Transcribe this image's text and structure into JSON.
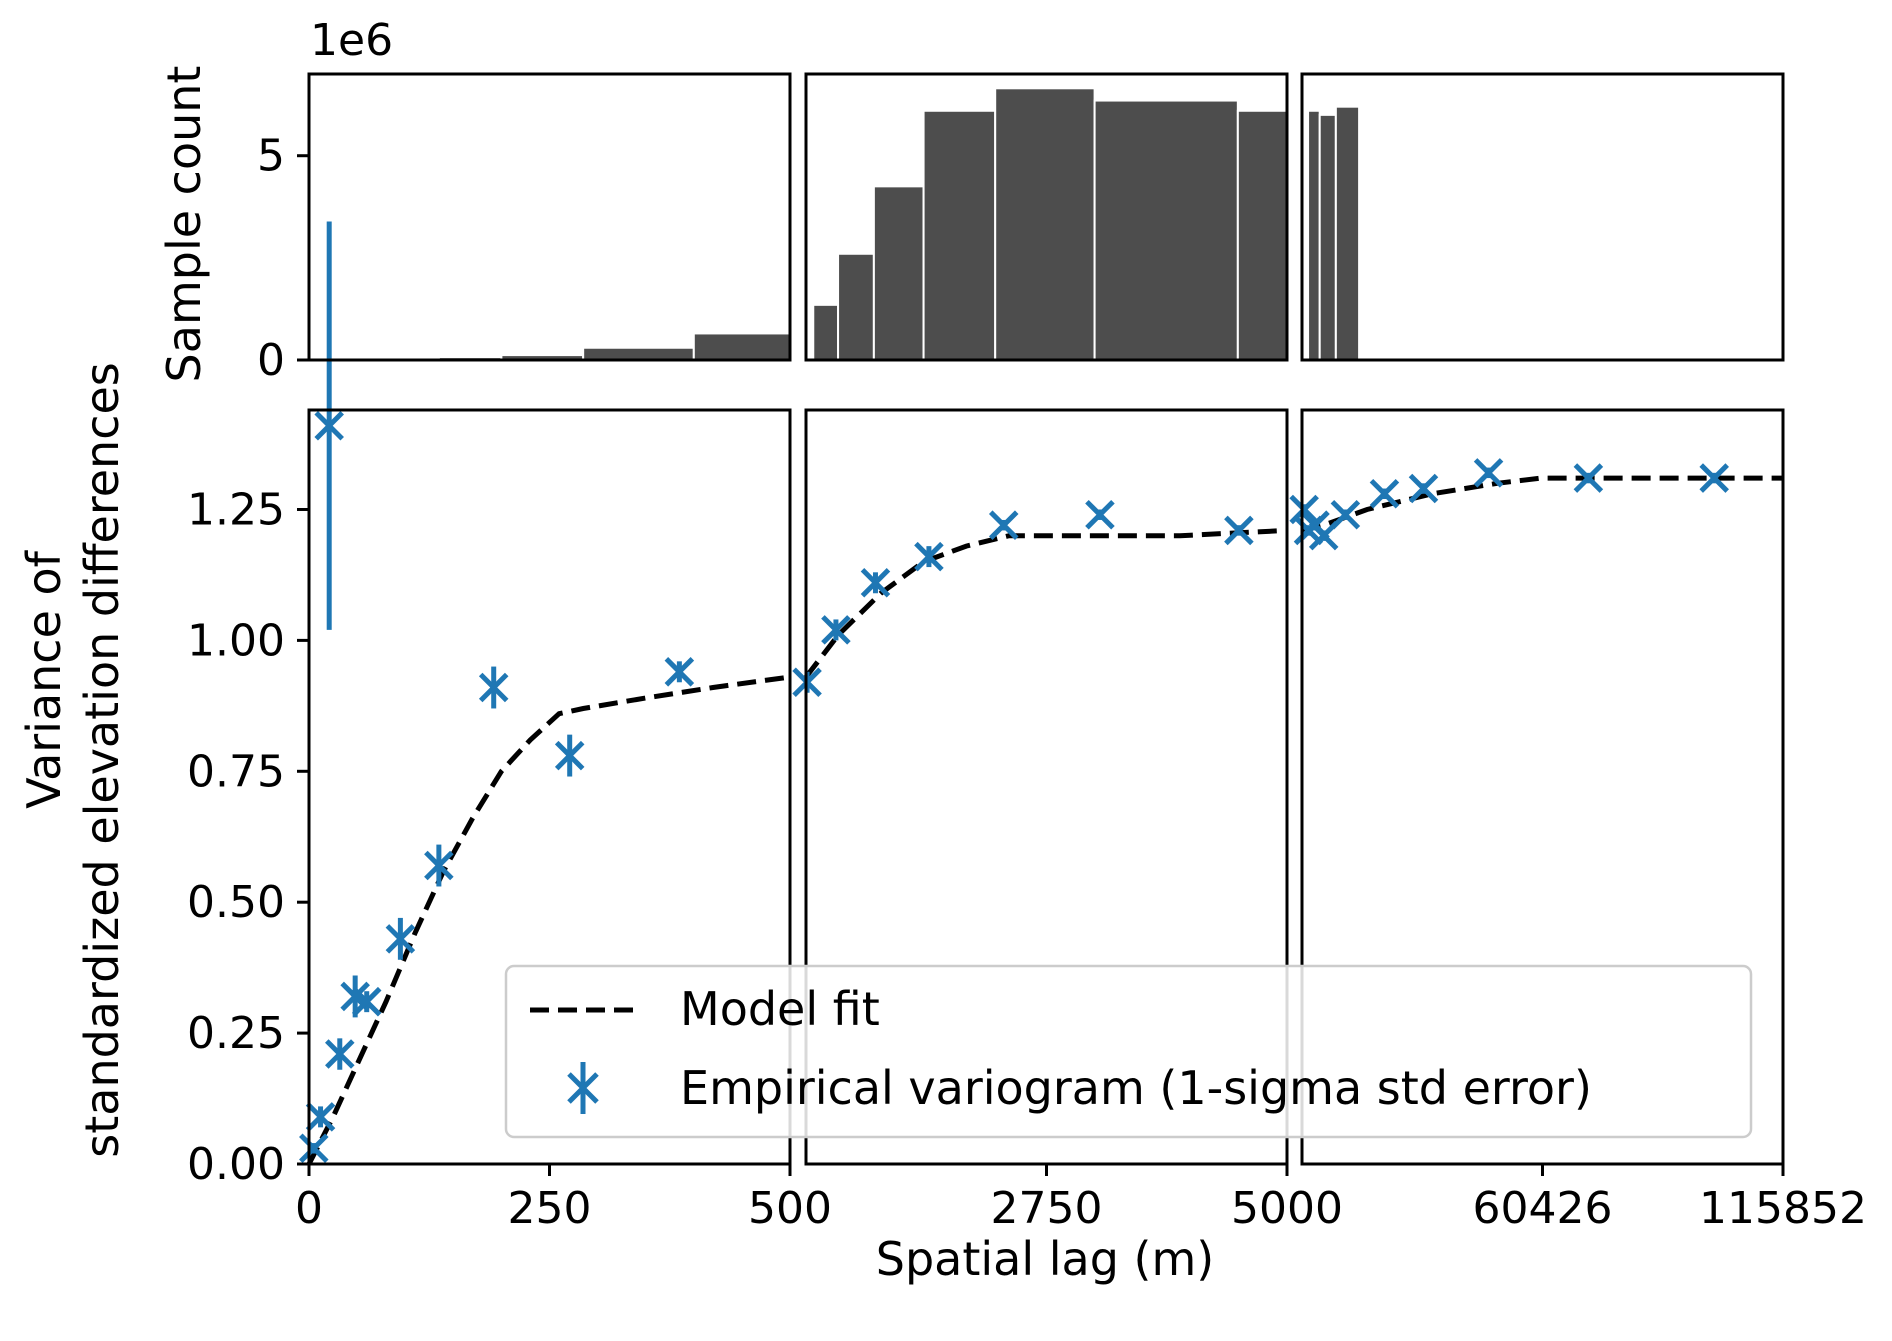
{
  "chart_data": {
    "type": "scatter",
    "xlabel": "Spatial lag (m)",
    "ylabel_line1": "Variance of",
    "ylabel_line2": "standardized elevation differences",
    "hist_ylabel": "Sample count",
    "hist_multiplier": "1e6",
    "xticks": [
      "0",
      "250",
      "500",
      "2750",
      "5000",
      "60426",
      "115852"
    ],
    "yticks": [
      "0.00",
      "0.25",
      "0.50",
      "0.75",
      "1.00",
      "1.25"
    ],
    "hist_yticks": [
      "0",
      "5"
    ],
    "ylim": [
      0,
      1.44
    ],
    "hist_ylim": [
      0,
      7.0
    ],
    "panels": [
      {
        "xlim": [
          0,
          500
        ]
      },
      {
        "xlim": [
          500,
          5000
        ]
      },
      {
        "xlim": [
          5000,
          115852
        ]
      }
    ],
    "legend": {
      "position": "lower right",
      "model_label": "Model fit",
      "empirical_label": "Empirical variogram (1-sigma std error)"
    },
    "colors": {
      "empirical": "#1f77b4",
      "model": "#000000",
      "bars": "#4d4d4d"
    },
    "empirical": [
      {
        "x": 5,
        "y": 0.03,
        "err": 0.01
      },
      {
        "x": 12,
        "y": 0.09,
        "err": 0.02
      },
      {
        "x": 21,
        "y": 1.41,
        "err": 0.39
      },
      {
        "x": 32,
        "y": 0.21,
        "err": 0.03
      },
      {
        "x": 48,
        "y": 0.32,
        "err": 0.04
      },
      {
        "x": 60,
        "y": 0.31,
        "err": 0.02
      },
      {
        "x": 95,
        "y": 0.43,
        "err": 0.04
      },
      {
        "x": 135,
        "y": 0.57,
        "err": 0.04
      },
      {
        "x": 192,
        "y": 0.91,
        "err": 0.04
      },
      {
        "x": 271,
        "y": 0.78,
        "err": 0.04
      },
      {
        "x": 385,
        "y": 0.94,
        "err": 0.02
      },
      {
        "x": 510,
        "y": 0.92,
        "err": 0.02
      },
      {
        "x": 780,
        "y": 1.02,
        "err": 0.02
      },
      {
        "x": 1150,
        "y": 1.11,
        "err": 0.02
      },
      {
        "x": 1650,
        "y": 1.16,
        "err": 0.02
      },
      {
        "x": 2350,
        "y": 1.22,
        "err": 0.01
      },
      {
        "x": 3250,
        "y": 1.24,
        "err": 0.01
      },
      {
        "x": 4550,
        "y": 1.21,
        "err": 0.01
      },
      {
        "x": 5500,
        "y": 1.25,
        "err": 0.01
      },
      {
        "x": 6500,
        "y": 1.21,
        "err": 0.01
      },
      {
        "x": 8000,
        "y": 1.22,
        "err": 0.01
      },
      {
        "x": 10000,
        "y": 1.2,
        "err": 0.01
      },
      {
        "x": 15000,
        "y": 1.24,
        "err": 0.01
      },
      {
        "x": 24000,
        "y": 1.28,
        "err": 0.01
      },
      {
        "x": 33000,
        "y": 1.29,
        "err": 0.01
      },
      {
        "x": 48000,
        "y": 1.32,
        "err": 0.01
      },
      {
        "x": 71000,
        "y": 1.31,
        "err": 0.01
      },
      {
        "x": 100000,
        "y": 1.31,
        "err": 0.01
      }
    ],
    "model_fit": [
      [
        0,
        0.0
      ],
      [
        25,
        0.09
      ],
      [
        50,
        0.19
      ],
      [
        80,
        0.31
      ],
      [
        110,
        0.44
      ],
      [
        140,
        0.56
      ],
      [
        170,
        0.66
      ],
      [
        200,
        0.75
      ],
      [
        230,
        0.81
      ],
      [
        260,
        0.86
      ],
      [
        285,
        0.87
      ],
      [
        350,
        0.89
      ],
      [
        420,
        0.91
      ],
      [
        500,
        0.93
      ],
      [
        800,
        1.01
      ],
      [
        1200,
        1.09
      ],
      [
        1600,
        1.15
      ],
      [
        2000,
        1.18
      ],
      [
        2400,
        1.2
      ],
      [
        3000,
        1.2
      ],
      [
        4000,
        1.2
      ],
      [
        5000,
        1.21
      ],
      [
        10000,
        1.22
      ],
      [
        20000,
        1.25
      ],
      [
        35000,
        1.28
      ],
      [
        50000,
        1.3
      ],
      [
        60000,
        1.31
      ],
      [
        75000,
        1.31
      ],
      [
        115852,
        1.31
      ]
    ],
    "histogram": [
      {
        "x0": 90,
        "x1": 135,
        "count": 0.03
      },
      {
        "x0": 135,
        "x1": 200,
        "count": 0.07
      },
      {
        "x0": 200,
        "x1": 285,
        "count": 0.12
      },
      {
        "x0": 285,
        "x1": 400,
        "count": 0.3
      },
      {
        "x0": 400,
        "x1": 568,
        "count": 0.65
      },
      {
        "x0": 568,
        "x1": 800,
        "count": 1.35
      },
      {
        "x0": 800,
        "x1": 1135,
        "count": 2.6
      },
      {
        "x0": 1135,
        "x1": 1600,
        "count": 4.25
      },
      {
        "x0": 1600,
        "x1": 2270,
        "count": 6.1
      },
      {
        "x0": 2270,
        "x1": 3200,
        "count": 6.65
      },
      {
        "x0": 3200,
        "x1": 4540,
        "count": 6.35
      },
      {
        "x0": 4540,
        "x1": 6400,
        "count": 6.1
      },
      {
        "x0": 6400,
        "x1": 9080,
        "count": 6.1
      },
      {
        "x0": 9080,
        "x1": 12800,
        "count": 6.0
      },
      {
        "x0": 12800,
        "x1": 18160,
        "count": 6.2
      }
    ]
  }
}
